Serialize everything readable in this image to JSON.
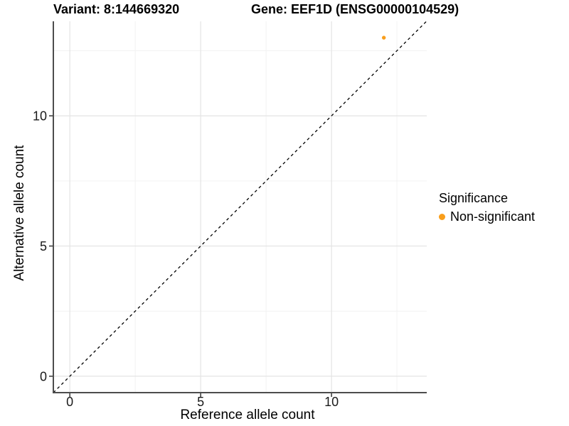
{
  "titles": {
    "variant": "Variant: 8:144669320",
    "gene": "Gene: EEF1D (ENSG00000104529)"
  },
  "axes": {
    "x_title": "Reference allele count",
    "y_title": "Alternative allele count",
    "x_tick_labels": [
      "0",
      "5",
      "10"
    ],
    "y_tick_labels": [
      "0",
      "5",
      "10"
    ]
  },
  "legend": {
    "title": "Significance",
    "items": [
      {
        "label": "Non-significant",
        "color": "#F99E1B",
        "marker": "circle"
      }
    ]
  },
  "chart_data": {
    "type": "scatter",
    "title": "Variant: 8:144669320 / Gene: EEF1D (ENSG00000104529)",
    "xlabel": "Reference allele count",
    "ylabel": "Alternative allele count",
    "xlim": [
      -0.63,
      13.64
    ],
    "ylim": [
      -0.63,
      13.63
    ],
    "x_major_ticks": [
      0,
      5,
      10
    ],
    "y_major_ticks": [
      0,
      5,
      10
    ],
    "x_minor_ticks": [
      2.5,
      7.5,
      12.5
    ],
    "y_minor_ticks": [
      2.5,
      7.5,
      12.5
    ],
    "grid": "major-and-minor",
    "legend_position": "right",
    "series": [
      {
        "name": "Non-significant",
        "color": "#F99E1B",
        "marker": "circle",
        "points": [
          {
            "x": 12,
            "y": 13
          }
        ]
      }
    ],
    "annotations": [
      {
        "type": "abline",
        "slope": 1,
        "intercept": 0,
        "linestyle": "dashed",
        "color": "#000000",
        "meaning": "y equals x identity line"
      }
    ],
    "style": {
      "panel_background": "#FFFFFF",
      "grid_major_color": "#E4E4E4",
      "grid_minor_color": "#F2F2F2",
      "axis_line_color": "#4D4D4D",
      "tick_mark_color": "#333333",
      "tick_label_color": "#1A1A1A",
      "point_color": "#F99E1B"
    }
  }
}
